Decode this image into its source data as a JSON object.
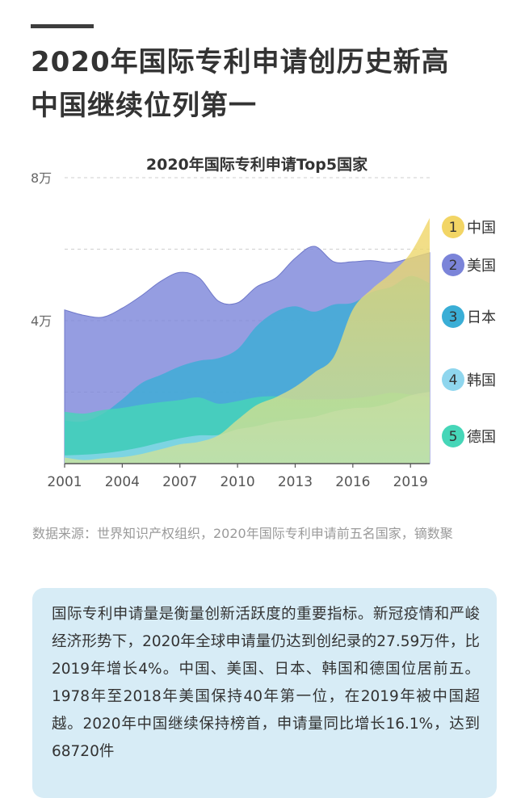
{
  "headline": {
    "line1": "2020年国际专利申请创历史新高",
    "line2": "中国继续位列第一"
  },
  "source": "数据来源：世界知识产权组织，2020年国际专利申请前五名国家，镝数聚",
  "note": "国际专利申请量是衡量创新活跃度的重要指标。新冠疫情和严峻经济形势下，2020年全球申请量仍达到创纪录的27.59万件，比2019年增长4%。中国、美国、日本、韩国和德国位居前五。1978年至2018年美国保持40年第一位，在2019年被中国超越。2020年中国继续保持榜首，申请量同比增长16.1%，达到68720件",
  "chart_data": {
    "type": "area",
    "title": "2020年国际专利申请Top5国家",
    "ylim": [
      0,
      80000
    ],
    "y_tick_labels": [
      {
        "value": 40000,
        "label": "4万"
      },
      {
        "value": 80000,
        "label": "8万"
      }
    ],
    "x": [
      2001,
      2002,
      2003,
      2004,
      2005,
      2006,
      2007,
      2008,
      2009,
      2010,
      2011,
      2012,
      2013,
      2014,
      2015,
      2016,
      2017,
      2018,
      2019,
      2020
    ],
    "x_tick_labels": [
      "2001",
      "2004",
      "2007",
      "2010",
      "2013",
      "2016",
      "2019"
    ],
    "series": [
      {
        "name": "美国",
        "rank": "2",
        "color": "#7b84d9",
        "values": [
          43000,
          41500,
          41000,
          43500,
          47000,
          51000,
          53500,
          52000,
          45500,
          45000,
          49500,
          52000,
          57500,
          60800,
          56500,
          56500,
          56800,
          56200,
          57500,
          59000
        ]
      },
      {
        "name": "日本",
        "rank": "3",
        "color": "#3aaed6",
        "values": [
          12000,
          11800,
          14000,
          18000,
          22500,
          24800,
          27200,
          28800,
          29500,
          32000,
          38500,
          42500,
          44000,
          42500,
          44500,
          45000,
          48000,
          49500,
          52500,
          50500
        ]
      },
      {
        "name": "德国",
        "rank": "5",
        "color": "#46d6b8",
        "values": [
          14500,
          14000,
          15000,
          15600,
          16500,
          17200,
          17800,
          18500,
          16800,
          17500,
          18600,
          18800,
          17900,
          18000,
          18000,
          18300,
          18900,
          19800,
          19300,
          18600
        ]
      },
      {
        "name": "韩国",
        "rank": "4",
        "color": "#8fd6ee",
        "values": [
          2300,
          2500,
          2900,
          3600,
          4600,
          5900,
          7100,
          7900,
          8000,
          9600,
          10500,
          11800,
          12400,
          13100,
          14600,
          15500,
          15800,
          17000,
          19100,
          20100
        ]
      },
      {
        "name": "中国",
        "rank": "1",
        "color": "#f2d565",
        "values": [
          1700,
          1000,
          1500,
          1800,
          2700,
          4000,
          5400,
          6100,
          7900,
          12300,
          16400,
          18600,
          21500,
          25500,
          29800,
          43100,
          48900,
          53300,
          58900,
          68720
        ]
      }
    ]
  }
}
